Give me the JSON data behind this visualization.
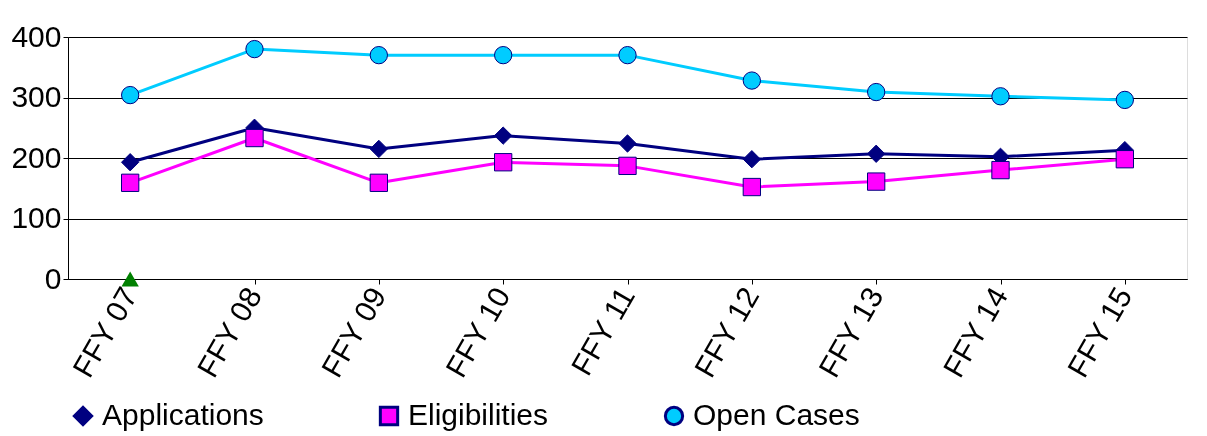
{
  "chart_data": {
    "type": "line",
    "categories": [
      "FFY 07",
      "FFY 08",
      "FFY 09",
      "FFY 10",
      "FFY 11",
      "FFY 12",
      "FFY 13",
      "FFY 14",
      "FFY 15"
    ],
    "series": [
      {
        "name": "Applications",
        "color": "#000080",
        "marker": "diamond",
        "values": [
          193,
          250,
          215,
          237,
          224,
          198,
          207,
          202,
          213
        ]
      },
      {
        "name": "Eligibilities",
        "color": "#ff00ff",
        "marker": "square",
        "values": [
          159,
          233,
          159,
          193,
          187,
          152,
          161,
          180,
          198
        ]
      },
      {
        "name": "Open Cases",
        "color": "#00ccff",
        "marker": "circle",
        "values": [
          304,
          380,
          370,
          370,
          370,
          328,
          309,
          302,
          296
        ]
      },
      {
        "type": "scatter",
        "color": "#008000",
        "marker": "triangle",
        "values": [
          0,
          null,
          null,
          null,
          null,
          null,
          null,
          null,
          null
        ]
      }
    ],
    "ylim": [
      0,
      400
    ],
    "yticks": [
      0,
      100,
      200,
      300,
      400
    ],
    "grid": "y",
    "legend": "bottom"
  }
}
